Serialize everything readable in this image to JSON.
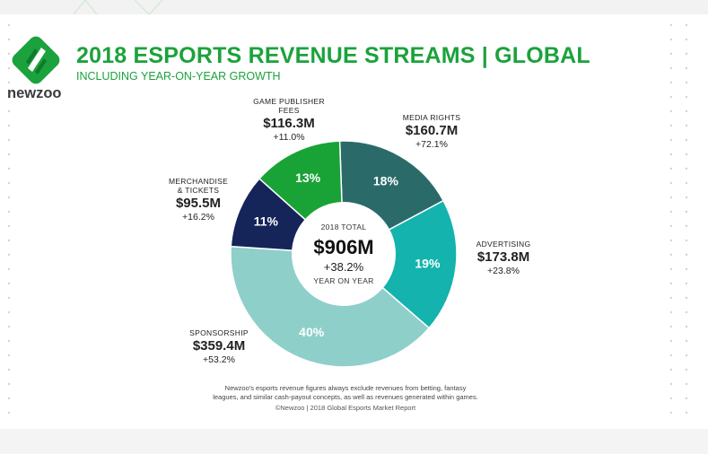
{
  "header": {
    "title": "2018 ESPORTS REVENUE STREAMS | GLOBAL",
    "subtitle": "INCLUDING YEAR-ON-YEAR GROWTH"
  },
  "brand": {
    "name": "newzoo",
    "colors": {
      "green": "#1ba23c",
      "dark": "#3b3b3b"
    }
  },
  "center": {
    "label": "2018 TOTAL",
    "total": "$906M",
    "growth": "+38.2%",
    "note": "YEAR ON YEAR"
  },
  "chart_data": {
    "type": "pie",
    "variant": "donut",
    "title": "2018 ESPORTS REVENUE STREAMS | GLOBAL",
    "unit": "$M",
    "categories": [
      "Media Rights",
      "Advertising",
      "Sponsorship",
      "Merchandise & Tickets",
      "Game Publisher Fees"
    ],
    "values": [
      160.7,
      173.8,
      359.4,
      95.5,
      116.3
    ],
    "percent_labels": [
      "18%",
      "19%",
      "40%",
      "11%",
      "13%"
    ],
    "colors": [
      "#2a6b6a",
      "#14b3ad",
      "#8ecfc9",
      "#15255a",
      "#19a336"
    ],
    "slices": [
      {
        "name": "MEDIA RIGHTS",
        "amount": "$160.7M",
        "growth": "+72.1%",
        "percent": "18%"
      },
      {
        "name": "ADVERTISING",
        "amount": "$173.8M",
        "growth": "+23.8%",
        "percent": "19%"
      },
      {
        "name": "SPONSORSHIP",
        "amount": "$359.4M",
        "growth": "+53.2%",
        "percent": "40%"
      },
      {
        "name_lines": [
          "MERCHANDISE",
          "& TICKETS"
        ],
        "amount": "$95.5M",
        "growth": "+16.2%",
        "percent": "11%"
      },
      {
        "name_lines": [
          "GAME PUBLISHER",
          "FEES"
        ],
        "amount": "$116.3M",
        "growth": "+11.0%",
        "percent": "13%"
      }
    ],
    "total": "$906M",
    "total_growth": "+38.2%"
  },
  "footnote": {
    "line1": "Newzoo's esports revenue figures always exclude revenues from betting, fantasy",
    "line2": "leagues, and similar cash-payout concepts, as well as revenues generated within games.",
    "source": "©Newzoo | 2018 Global Esports Market Report"
  }
}
